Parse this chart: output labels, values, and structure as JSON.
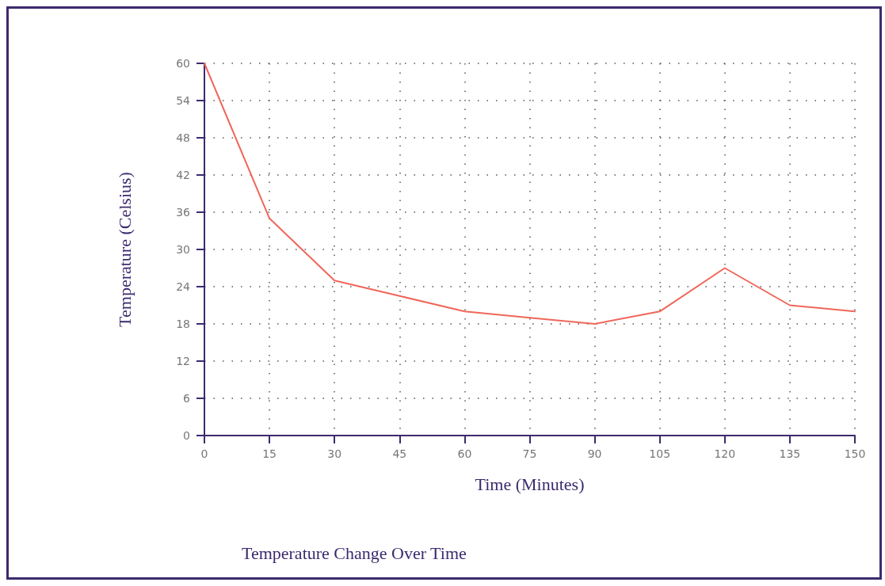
{
  "chart_data": {
    "type": "line",
    "title": "Temperature Change Over Time",
    "xlabel": "Time (Minutes)",
    "ylabel": "Temperature (Celsius)",
    "x": [
      0,
      15,
      30,
      45,
      60,
      75,
      90,
      105,
      120,
      135,
      150
    ],
    "series": [
      {
        "color": "#f0665a",
        "values": [
          60,
          35,
          25,
          22.5,
          20,
          19,
          18,
          20,
          27,
          21,
          20
        ]
      }
    ],
    "xlim": [
      0,
      150
    ],
    "xticks": [
      0,
      15,
      30,
      45,
      60,
      75,
      90,
      105,
      120,
      135,
      150
    ],
    "ylim": [
      0,
      60
    ],
    "yticks": [
      0,
      6,
      12,
      18,
      24,
      30,
      36,
      42,
      48,
      54,
      60
    ],
    "grid": true,
    "marker": "none",
    "line_style": "solid"
  }
}
